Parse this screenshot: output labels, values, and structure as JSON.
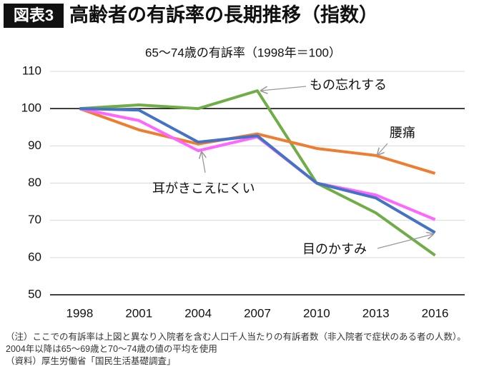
{
  "chart_data": {
    "type": "line",
    "badge": "図表3",
    "title": "高齢者の有訴率の長期推移（指数）",
    "subtitle": "65〜74歳の有訴率（1998年＝100）",
    "categories": [
      "1998",
      "2001",
      "2004",
      "2007",
      "2010",
      "2013",
      "2016"
    ],
    "series": [
      {
        "name": "もの忘れする",
        "color": "#70ad47",
        "values": [
          100,
          101,
          100,
          104.8,
          80,
          72,
          60.6
        ]
      },
      {
        "name": "腰痛",
        "color": "#ed7d31",
        "values": [
          100,
          94.3,
          90.5,
          93.2,
          89.3,
          87.4,
          82.6
        ]
      },
      {
        "name": "耳がきこえにくい",
        "color": "#ff66ff",
        "values": [
          100,
          96.8,
          88.7,
          92.4,
          80,
          76.8,
          70.2
        ]
      },
      {
        "name": "目のかすみ",
        "color": "#4472c4",
        "values": [
          100,
          99.6,
          91,
          92.7,
          80,
          76,
          66.7
        ]
      }
    ],
    "ylim": [
      50,
      110
    ],
    "yticks": [
      50,
      60,
      70,
      80,
      90,
      100,
      110
    ],
    "grid": true,
    "baseline": 100,
    "notes": [
      "（注）ここでの有訴率は上図と異なり入院者を含む人口千人当たりの有訴者数（非入院者で症状のある者の人数）。2004年以降は65〜69歳と70〜74歳の値の平均を使用",
      "（資料）厚生労働省「国民生活基礎調査」"
    ]
  }
}
